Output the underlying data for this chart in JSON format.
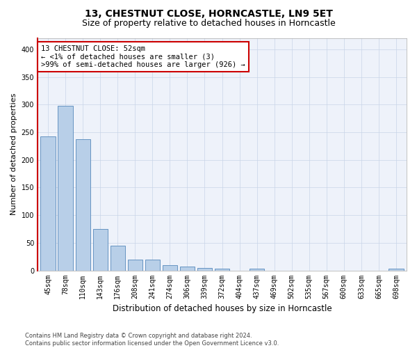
{
  "title1": "13, CHESTNUT CLOSE, HORNCASTLE, LN9 5ET",
  "title2": "Size of property relative to detached houses in Horncastle",
  "xlabel": "Distribution of detached houses by size in Horncastle",
  "ylabel": "Number of detached properties",
  "categories": [
    "45sqm",
    "78sqm",
    "110sqm",
    "143sqm",
    "176sqm",
    "208sqm",
    "241sqm",
    "274sqm",
    "306sqm",
    "339sqm",
    "372sqm",
    "404sqm",
    "437sqm",
    "469sqm",
    "502sqm",
    "535sqm",
    "567sqm",
    "600sqm",
    "633sqm",
    "665sqm",
    "698sqm"
  ],
  "values": [
    242,
    298,
    238,
    75,
    45,
    20,
    20,
    9,
    7,
    5,
    3,
    0,
    3,
    0,
    0,
    0,
    0,
    0,
    0,
    0,
    3
  ],
  "bar_color": "#b8cfe8",
  "bar_edgecolor": "#5588bb",
  "highlight_color": "#cc0000",
  "annotation_box_text": "13 CHESTNUT CLOSE: 52sqm\n← <1% of detached houses are smaller (3)\n>99% of semi-detached houses are larger (926) →",
  "annotation_box_edgecolor": "#cc0000",
  "annotation_box_facecolor": "#ffffff",
  "ylim": [
    0,
    420
  ],
  "yticks": [
    0,
    50,
    100,
    150,
    200,
    250,
    300,
    350,
    400
  ],
  "grid_color": "#c8d4e8",
  "background_color": "#eef2fa",
  "footer_text": "Contains HM Land Registry data © Crown copyright and database right 2024.\nContains public sector information licensed under the Open Government Licence v3.0.",
  "title1_fontsize": 10,
  "title2_fontsize": 9,
  "xlabel_fontsize": 8.5,
  "ylabel_fontsize": 8,
  "tick_fontsize": 7,
  "annotation_fontsize": 7.5,
  "footer_fontsize": 6
}
